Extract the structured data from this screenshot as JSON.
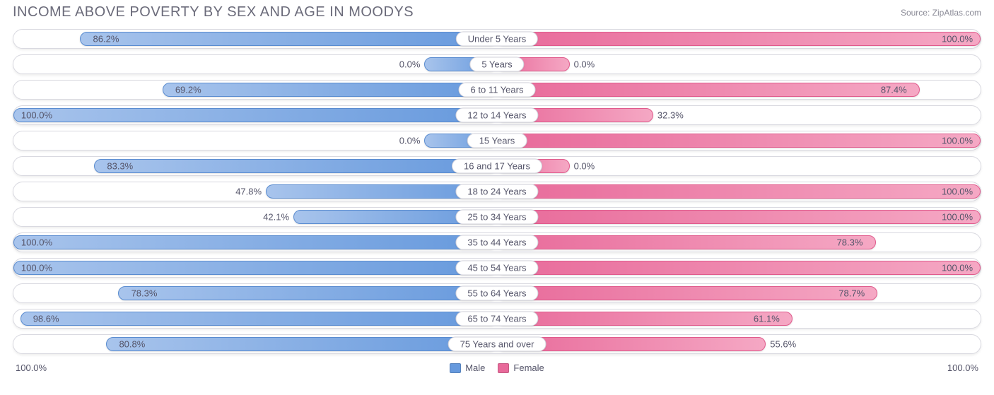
{
  "title": "INCOME ABOVE POVERTY BY SEX AND AGE IN MOODYS",
  "source": "Source: ZipAtlas.com",
  "colors": {
    "male_start": "#6699dd",
    "male_end": "#a8c4ec",
    "male_border": "#5a8cd0",
    "female_start": "#e86a9a",
    "female_end": "#f5a8c4",
    "female_border": "#e05a8c",
    "row_border": "#d9d9e0",
    "text": "#55556a",
    "title_text": "#6b6b7a",
    "background": "#ffffff"
  },
  "chart": {
    "type": "bidirectional-bar",
    "axis_left": "100.0%",
    "axis_right": "100.0%",
    "min_bar_pct": 15,
    "legend": [
      {
        "label": "Male",
        "color": "#6699dd"
      },
      {
        "label": "Female",
        "color": "#e86a9a"
      }
    ],
    "rows": [
      {
        "category": "Under 5 Years",
        "male": 86.2,
        "female": 100.0
      },
      {
        "category": "5 Years",
        "male": 0.0,
        "female": 0.0
      },
      {
        "category": "6 to 11 Years",
        "male": 69.2,
        "female": 87.4
      },
      {
        "category": "12 to 14 Years",
        "male": 100.0,
        "female": 32.3
      },
      {
        "category": "15 Years",
        "male": 0.0,
        "female": 100.0
      },
      {
        "category": "16 and 17 Years",
        "male": 83.3,
        "female": 0.0
      },
      {
        "category": "18 to 24 Years",
        "male": 47.8,
        "female": 100.0
      },
      {
        "category": "25 to 34 Years",
        "male": 42.1,
        "female": 100.0
      },
      {
        "category": "35 to 44 Years",
        "male": 100.0,
        "female": 78.3
      },
      {
        "category": "45 to 54 Years",
        "male": 100.0,
        "female": 100.0
      },
      {
        "category": "55 to 64 Years",
        "male": 78.3,
        "female": 78.7
      },
      {
        "category": "65 to 74 Years",
        "male": 98.6,
        "female": 61.1
      },
      {
        "category": "75 Years and over",
        "male": 80.8,
        "female": 55.6
      }
    ]
  }
}
